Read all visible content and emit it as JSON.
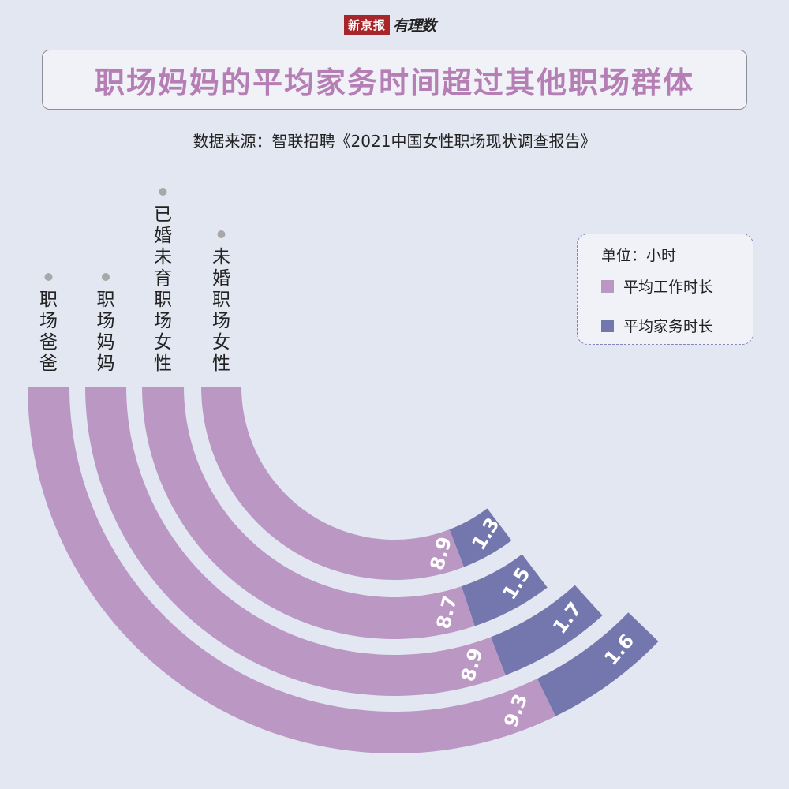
{
  "logo": {
    "brand": "新京报",
    "sub": "有理数"
  },
  "title": "职场妈妈的平均家务时间超过其他职场群体",
  "source": "数据来源：智联招聘《2021中国女性职场现状调查报告》",
  "legend": {
    "unit": "单位：小时",
    "items": [
      {
        "label": "平均工作时长",
        "color": "#bb98c4"
      },
      {
        "label": "平均家务时长",
        "color": "#7477ae"
      }
    ]
  },
  "colors": {
    "dot": "#a8a8a8",
    "value_text": "#ffffff"
  },
  "chart_data": {
    "type": "radial_bar",
    "categories": [
      "职场爸爸",
      "职场妈妈",
      "已婚未育职场女性",
      "未婚职场女性"
    ],
    "series": [
      {
        "name": "平均工作时长",
        "values": [
          9.3,
          8.9,
          8.7,
          8.9
        ]
      },
      {
        "name": "平均家务时长",
        "values": [
          1.6,
          1.7,
          1.5,
          1.3
        ]
      }
    ],
    "value_labels": {
      "work": [
        "9.3",
        "8.9",
        "8.7",
        "8.9"
      ],
      "house": [
        "1.6",
        "1.7",
        "1.5",
        "1.3"
      ]
    }
  }
}
